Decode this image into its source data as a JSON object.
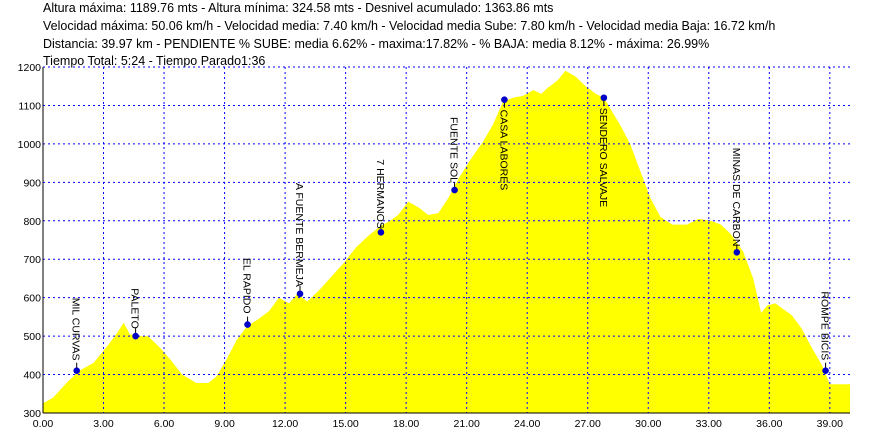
{
  "info_lines": [
    "Altura máxima: 1189.76 mts - Altura mínima: 324.58 mts - Desnivel acumulado: 1363.86 mts",
    "Velocidad máxima: 50.06 km/h - Velocidad media: 7.40 km/h - Velocidad media Sube: 7.80 km/h - Velocidad media Baja: 16.72 km/h",
    "Distancia: 39.97 km - PENDIENTE  % SUBE: media 6.62% - maxima:17.82%  - % BAJA: media 8.12% - máxima: 26.99%",
    "Tiempo Total: 5:24 - Tiempo Parado1:36"
  ],
  "colors": {
    "fill": "#ffff00",
    "grid": "#0000ff",
    "marker": "#0000c8",
    "axis": "#000000"
  },
  "chart_data": {
    "type": "area",
    "xlim": [
      0,
      40
    ],
    "ylim": [
      300,
      1200
    ],
    "x_ticks": [
      "0.00",
      "3.00",
      "6.00",
      "9.00",
      "12.00",
      "15.00",
      "18.00",
      "21.00",
      "24.00",
      "27.00",
      "30.00",
      "33.00",
      "36.00",
      "39.00"
    ],
    "y_ticks": [
      "300",
      "400",
      "500",
      "600",
      "700",
      "800",
      "900",
      "1000",
      "1100",
      "1200"
    ],
    "grid": true,
    "profile": [
      [
        0,
        325
      ],
      [
        0.5,
        340
      ],
      [
        1.2,
        380
      ],
      [
        1.8,
        410
      ],
      [
        2.5,
        430
      ],
      [
        3.2,
        475
      ],
      [
        3.7,
        510
      ],
      [
        4.0,
        535
      ],
      [
        4.3,
        505
      ],
      [
        4.7,
        500
      ],
      [
        5.2,
        500
      ],
      [
        5.8,
        470
      ],
      [
        6.3,
        440
      ],
      [
        6.9,
        400
      ],
      [
        7.6,
        378
      ],
      [
        8.2,
        378
      ],
      [
        8.6,
        395
      ],
      [
        9.1,
        440
      ],
      [
        9.6,
        490
      ],
      [
        10.1,
        525
      ],
      [
        10.7,
        545
      ],
      [
        11.2,
        565
      ],
      [
        11.7,
        600
      ],
      [
        12.2,
        585
      ],
      [
        12.6,
        610
      ],
      [
        13.1,
        590
      ],
      [
        13.7,
        620
      ],
      [
        14.3,
        655
      ],
      [
        14.9,
        690
      ],
      [
        15.5,
        730
      ],
      [
        16.1,
        760
      ],
      [
        16.7,
        785
      ],
      [
        17.2,
        800
      ],
      [
        17.6,
        815
      ],
      [
        18.1,
        850
      ],
      [
        18.6,
        835
      ],
      [
        19.1,
        815
      ],
      [
        19.6,
        820
      ],
      [
        20.1,
        860
      ],
      [
        20.6,
        910
      ],
      [
        21.2,
        960
      ],
      [
        21.8,
        1005
      ],
      [
        22.3,
        1050
      ],
      [
        22.8,
        1110
      ],
      [
        23.3,
        1120
      ],
      [
        23.8,
        1125
      ],
      [
        24.3,
        1140
      ],
      [
        24.7,
        1130
      ],
      [
        25.0,
        1145
      ],
      [
        25.5,
        1165
      ],
      [
        25.9,
        1190
      ],
      [
        26.4,
        1175
      ],
      [
        26.9,
        1150
      ],
      [
        27.4,
        1130
      ],
      [
        27.8,
        1120
      ],
      [
        28.2,
        1085
      ],
      [
        28.6,
        1050
      ],
      [
        29.1,
        1000
      ],
      [
        29.6,
        930
      ],
      [
        30.1,
        860
      ],
      [
        30.6,
        810
      ],
      [
        31.2,
        790
      ],
      [
        31.9,
        790
      ],
      [
        32.5,
        805
      ],
      [
        33.1,
        800
      ],
      [
        33.6,
        790
      ],
      [
        34.1,
        765
      ],
      [
        34.7,
        720
      ],
      [
        35.2,
        650
      ],
      [
        35.6,
        560
      ],
      [
        35.9,
        580
      ],
      [
        36.3,
        585
      ],
      [
        36.7,
        570
      ],
      [
        37.1,
        555
      ],
      [
        37.6,
        520
      ],
      [
        38.1,
        470
      ],
      [
        38.6,
        425
      ],
      [
        39.0,
        375
      ],
      [
        39.97,
        375
      ]
    ],
    "waypoints": [
      {
        "name": "MIL CURVAS",
        "x": 1.67,
        "y": 410
      },
      {
        "name": "PALETO",
        "x": 4.59,
        "y": 500
      },
      {
        "name": "EL RAPIDO",
        "x": 10.14,
        "y": 530
      },
      {
        "name": "A FUENTE BERMEJA",
        "x": 12.74,
        "y": 610
      },
      {
        "name": "7 HERMANOS",
        "x": 16.75,
        "y": 770
      },
      {
        "name": "FUENTE SOL",
        "x": 20.4,
        "y": 880
      },
      {
        "name": "CASA LABORES",
        "x": 22.87,
        "y": 1115
      },
      {
        "name": "SENDERO SALVAJE",
        "x": 27.8,
        "y": 1120
      },
      {
        "name": "MINAS DE CARBON",
        "x": 34.39,
        "y": 718
      },
      {
        "name": "ROMPE BICIS",
        "x": 38.79,
        "y": 410
      }
    ]
  }
}
